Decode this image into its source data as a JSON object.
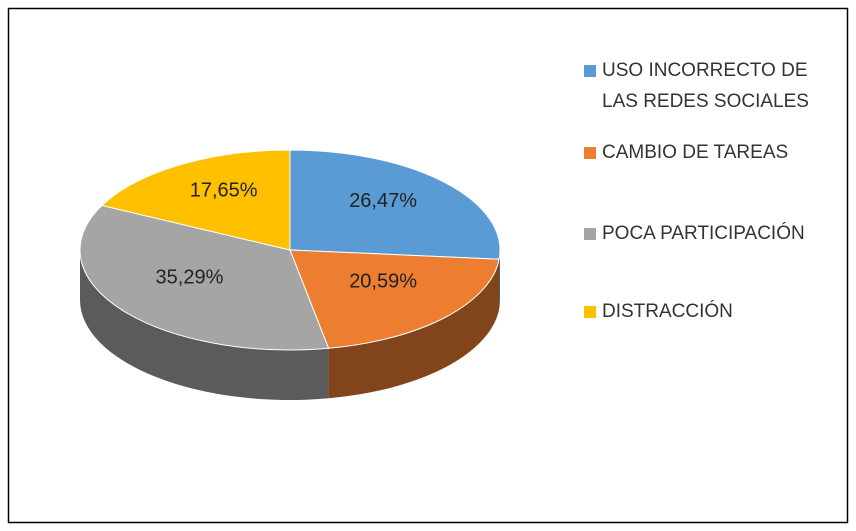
{
  "chart_data": {
    "type": "pie",
    "categories": [
      "USO INCORRECTO DE LAS REDES SOCIALES",
      "CAMBIO DE TAREAS",
      "POCA PARTICIPACIÓN",
      "DISTRACCIÓN"
    ],
    "values": [
      26.47,
      20.59,
      35.29,
      17.65
    ],
    "value_labels": [
      "26,47%",
      "20,59%",
      "35,29%",
      "17,65%"
    ],
    "colors": [
      "#5b9bd5",
      "#ed7d31",
      "#a5a5a5",
      "#ffc000"
    ],
    "legend": "right"
  }
}
